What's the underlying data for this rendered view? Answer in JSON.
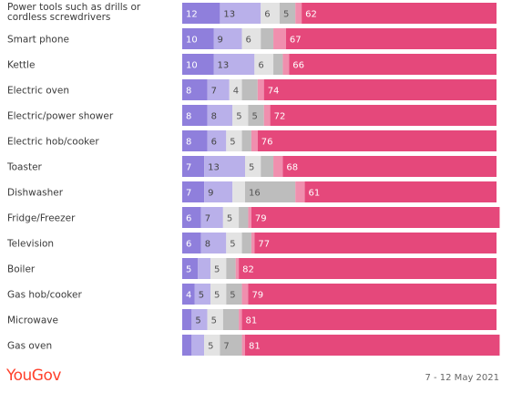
{
  "chart_data": {
    "type": "bar",
    "orientation": "horizontal",
    "stacked": true,
    "categories": [
      "Power tools such as drills or cordless screwdrivers",
      "Smart phone",
      "Kettle",
      "Electric oven",
      "Electric/power shower",
      "Electric hob/cooker",
      "Toaster",
      "Dishwasher",
      "Fridge/Freezer",
      "Television",
      "Boiler",
      "Gas hob/cooker",
      "Microwave",
      "Gas oven"
    ],
    "series": [
      {
        "values": [
          12,
          10,
          10,
          8,
          8,
          8,
          7,
          7,
          6,
          6,
          5,
          4,
          3,
          3
        ]
      },
      {
        "values": [
          13,
          9,
          13,
          7,
          8,
          6,
          13,
          9,
          7,
          8,
          4,
          5,
          5,
          4
        ]
      },
      {
        "values": [
          6,
          6,
          6,
          4,
          5,
          5,
          5,
          4,
          5,
          5,
          5,
          5,
          5,
          5
        ]
      },
      {
        "values": [
          5,
          4,
          3,
          5,
          5,
          3,
          4,
          16,
          3,
          3,
          3,
          5,
          5,
          7
        ]
      },
      {
        "values": [
          2,
          4,
          2,
          2,
          2,
          2,
          3,
          3,
          1,
          1,
          1,
          2,
          1,
          1
        ]
      },
      {
        "values": [
          62,
          67,
          66,
          74,
          72,
          76,
          68,
          61,
          79,
          77,
          82,
          79,
          81,
          81
        ]
      }
    ],
    "labels": [
      [
        "12",
        "13",
        "6",
        "5",
        "",
        "62"
      ],
      [
        "10",
        "9",
        "6",
        "",
        "",
        "67"
      ],
      [
        "10",
        "13",
        "6",
        "",
        "",
        "66"
      ],
      [
        "8",
        "7",
        "4",
        "",
        "",
        "74"
      ],
      [
        "8",
        "8",
        "5",
        "5",
        "",
        "72"
      ],
      [
        "8",
        "6",
        "5",
        "",
        "",
        "76"
      ],
      [
        "7",
        "13",
        "5",
        "",
        "",
        "68"
      ],
      [
        "7",
        "9",
        "",
        "16",
        "",
        "61"
      ],
      [
        "6",
        "7",
        "5",
        "",
        "",
        "79"
      ],
      [
        "6",
        "8",
        "5",
        "",
        "",
        "77"
      ],
      [
        "5",
        "",
        "5",
        "",
        "",
        "82"
      ],
      [
        "4",
        "5",
        "5",
        "5",
        "",
        "79"
      ],
      [
        "",
        "5",
        "5",
        "",
        "",
        "81"
      ],
      [
        "",
        "",
        "5",
        "7",
        "",
        "81"
      ]
    ],
    "xlim": [
      0,
      100
    ],
    "colors": [
      "#8f7fdc",
      "#b9b0ea",
      "#e3e3e3",
      "#bdbdbd",
      "#f08fae",
      "#e5487b"
    ],
    "value_label_colors": [
      "#ffffff",
      "#444444",
      "#555555",
      "#555555",
      "#ffffff",
      "#ffffff"
    ],
    "grid": false,
    "legend": "none"
  },
  "footer": {
    "brand": "YouGov",
    "date": "7 - 12 May 2021"
  }
}
